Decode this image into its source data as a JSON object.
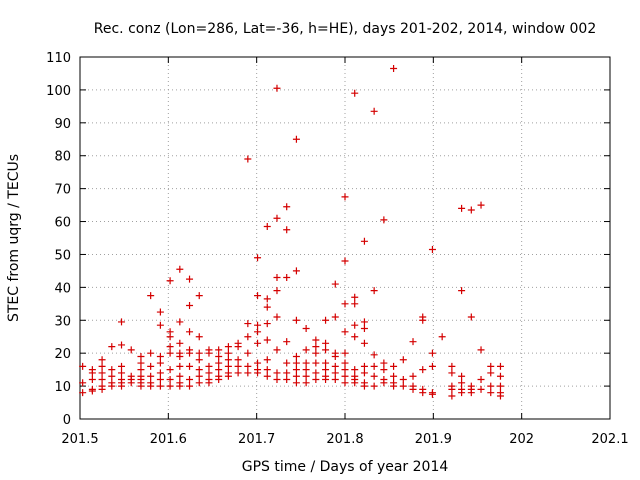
{
  "chart_data": {
    "type": "scatter",
    "title": "Rec. conz (Lon=286, Lat=-36, h=HE), days 201-202, 2014, window 002",
    "xlabel": "GPS time / Days of year 2014",
    "ylabel": "STEC from uqrg / TECUs",
    "xlim": [
      201.5,
      202.1
    ],
    "ylim": [
      0,
      110
    ],
    "x_ticks": [
      201.5,
      201.6,
      201.7,
      201.8,
      201.9,
      202,
      202.1
    ],
    "x_tick_labels": [
      "201.5",
      "201.6",
      "201.7",
      "201.8",
      "201.9",
      "202",
      "202.1"
    ],
    "y_ticks": [
      0,
      10,
      20,
      30,
      40,
      50,
      60,
      70,
      80,
      90,
      100,
      110
    ],
    "y_tick_labels": [
      "0",
      "10",
      "20",
      "30",
      "40",
      "50",
      "60",
      "70",
      "80",
      "90",
      "100",
      "110"
    ],
    "grid": true,
    "marker": "+",
    "color": "#d40000",
    "series": [
      {
        "name": "STEC",
        "points": [
          [
            201.503,
            8
          ],
          [
            201.503,
            11
          ],
          [
            201.503,
            16
          ],
          [
            201.514,
            8.5
          ],
          [
            201.514,
            9
          ],
          [
            201.514,
            12
          ],
          [
            201.514,
            14
          ],
          [
            201.514,
            15
          ],
          [
            201.525,
            9
          ],
          [
            201.525,
            10
          ],
          [
            201.525,
            12
          ],
          [
            201.525,
            14
          ],
          [
            201.525,
            16
          ],
          [
            201.525,
            18
          ],
          [
            201.536,
            10
          ],
          [
            201.536,
            11
          ],
          [
            201.536,
            13
          ],
          [
            201.536,
            15
          ],
          [
            201.536,
            22
          ],
          [
            201.547,
            10
          ],
          [
            201.547,
            11
          ],
          [
            201.547,
            12
          ],
          [
            201.547,
            14
          ],
          [
            201.547,
            16
          ],
          [
            201.547,
            22.5
          ],
          [
            201.547,
            29.5
          ],
          [
            201.558,
            11
          ],
          [
            201.558,
            12
          ],
          [
            201.558,
            13
          ],
          [
            201.558,
            21
          ],
          [
            201.569,
            10
          ],
          [
            201.569,
            11
          ],
          [
            201.569,
            12
          ],
          [
            201.569,
            13
          ],
          [
            201.569,
            15
          ],
          [
            201.569,
            17
          ],
          [
            201.569,
            19
          ],
          [
            201.58,
            10
          ],
          [
            201.58,
            11
          ],
          [
            201.58,
            13
          ],
          [
            201.58,
            16
          ],
          [
            201.58,
            20
          ],
          [
            201.58,
            37.5
          ],
          [
            201.591,
            10
          ],
          [
            201.591,
            12
          ],
          [
            201.591,
            14
          ],
          [
            201.591,
            17
          ],
          [
            201.591,
            19
          ],
          [
            201.591,
            28.5
          ],
          [
            201.591,
            32.5
          ],
          [
            201.602,
            10
          ],
          [
            201.602,
            12
          ],
          [
            201.602,
            15
          ],
          [
            201.602,
            20
          ],
          [
            201.602,
            22
          ],
          [
            201.602,
            25
          ],
          [
            201.602,
            26.5
          ],
          [
            201.602,
            42
          ],
          [
            201.613,
            10
          ],
          [
            201.613,
            11
          ],
          [
            201.613,
            13
          ],
          [
            201.613,
            16
          ],
          [
            201.613,
            19
          ],
          [
            201.613,
            20
          ],
          [
            201.613,
            23
          ],
          [
            201.613,
            29.5
          ],
          [
            201.613,
            45.5
          ],
          [
            201.624,
            10
          ],
          [
            201.624,
            12
          ],
          [
            201.624,
            16
          ],
          [
            201.624,
            20
          ],
          [
            201.624,
            21
          ],
          [
            201.624,
            26.5
          ],
          [
            201.624,
            34.5
          ],
          [
            201.624,
            42.5
          ],
          [
            201.635,
            11
          ],
          [
            201.635,
            13
          ],
          [
            201.635,
            15
          ],
          [
            201.635,
            18
          ],
          [
            201.635,
            20
          ],
          [
            201.635,
            25
          ],
          [
            201.635,
            37.5
          ],
          [
            201.646,
            11
          ],
          [
            201.646,
            12
          ],
          [
            201.646,
            14
          ],
          [
            201.646,
            16
          ],
          [
            201.646,
            20
          ],
          [
            201.646,
            21
          ],
          [
            201.657,
            12
          ],
          [
            201.657,
            13
          ],
          [
            201.657,
            15
          ],
          [
            201.657,
            17
          ],
          [
            201.657,
            19
          ],
          [
            201.657,
            21
          ],
          [
            201.668,
            13
          ],
          [
            201.668,
            14
          ],
          [
            201.668,
            16
          ],
          [
            201.668,
            18
          ],
          [
            201.668,
            20
          ],
          [
            201.668,
            22
          ],
          [
            201.679,
            14
          ],
          [
            201.679,
            16
          ],
          [
            201.679,
            18
          ],
          [
            201.679,
            22
          ],
          [
            201.679,
            23
          ],
          [
            201.69,
            14
          ],
          [
            201.69,
            16
          ],
          [
            201.69,
            20
          ],
          [
            201.69,
            25
          ],
          [
            201.69,
            29
          ],
          [
            201.69,
            79
          ],
          [
            201.701,
            14
          ],
          [
            201.701,
            15
          ],
          [
            201.701,
            17
          ],
          [
            201.701,
            23
          ],
          [
            201.701,
            26.5
          ],
          [
            201.701,
            28.5
          ],
          [
            201.701,
            37.5
          ],
          [
            201.701,
            49
          ],
          [
            201.712,
            13
          ],
          [
            201.712,
            15
          ],
          [
            201.712,
            18
          ],
          [
            201.712,
            24
          ],
          [
            201.712,
            29
          ],
          [
            201.712,
            34
          ],
          [
            201.712,
            36.5
          ],
          [
            201.712,
            58.5
          ],
          [
            201.723,
            12
          ],
          [
            201.723,
            14
          ],
          [
            201.723,
            21
          ],
          [
            201.723,
            31
          ],
          [
            201.723,
            39
          ],
          [
            201.723,
            43
          ],
          [
            201.723,
            61
          ],
          [
            201.723,
            100.5
          ],
          [
            201.734,
            12
          ],
          [
            201.734,
            14
          ],
          [
            201.734,
            17
          ],
          [
            201.734,
            23.5
          ],
          [
            201.734,
            43
          ],
          [
            201.734,
            57.5
          ],
          [
            201.734,
            64.5
          ],
          [
            201.745,
            11
          ],
          [
            201.745,
            13
          ],
          [
            201.745,
            15
          ],
          [
            201.745,
            17
          ],
          [
            201.745,
            19
          ],
          [
            201.745,
            30
          ],
          [
            201.745,
            45
          ],
          [
            201.745,
            85
          ],
          [
            201.756,
            11
          ],
          [
            201.756,
            13
          ],
          [
            201.756,
            15
          ],
          [
            201.756,
            17
          ],
          [
            201.756,
            21
          ],
          [
            201.756,
            27.5
          ],
          [
            201.767,
            12
          ],
          [
            201.767,
            14
          ],
          [
            201.767,
            17
          ],
          [
            201.767,
            20
          ],
          [
            201.767,
            22
          ],
          [
            201.767,
            24
          ],
          [
            201.778,
            12
          ],
          [
            201.778,
            13
          ],
          [
            201.778,
            15
          ],
          [
            201.778,
            17
          ],
          [
            201.778,
            21
          ],
          [
            201.778,
            23
          ],
          [
            201.778,
            30
          ],
          [
            201.789,
            12
          ],
          [
            201.789,
            14
          ],
          [
            201.789,
            16
          ],
          [
            201.789,
            19
          ],
          [
            201.789,
            20
          ],
          [
            201.789,
            31
          ],
          [
            201.789,
            41
          ],
          [
            201.8,
            11
          ],
          [
            201.8,
            13
          ],
          [
            201.8,
            15
          ],
          [
            201.8,
            17
          ],
          [
            201.8,
            20
          ],
          [
            201.8,
            26.5
          ],
          [
            201.8,
            35
          ],
          [
            201.8,
            48
          ],
          [
            201.8,
            67.5
          ],
          [
            201.811,
            11
          ],
          [
            201.811,
            12
          ],
          [
            201.811,
            13
          ],
          [
            201.811,
            15
          ],
          [
            201.811,
            25
          ],
          [
            201.811,
            28.5
          ],
          [
            201.811,
            35
          ],
          [
            201.811,
            37
          ],
          [
            201.811,
            99
          ],
          [
            201.822,
            10
          ],
          [
            201.822,
            11
          ],
          [
            201.822,
            14
          ],
          [
            201.822,
            16
          ],
          [
            201.822,
            23
          ],
          [
            201.822,
            27.5
          ],
          [
            201.822,
            29.5
          ],
          [
            201.822,
            54
          ],
          [
            201.833,
            10
          ],
          [
            201.833,
            13
          ],
          [
            201.833,
            16
          ],
          [
            201.833,
            19.5
          ],
          [
            201.833,
            39
          ],
          [
            201.833,
            93.5
          ],
          [
            201.844,
            11
          ],
          [
            201.844,
            12
          ],
          [
            201.844,
            15
          ],
          [
            201.844,
            17
          ],
          [
            201.844,
            60.5
          ],
          [
            201.855,
            10
          ],
          [
            201.855,
            11
          ],
          [
            201.855,
            13
          ],
          [
            201.855,
            16
          ],
          [
            201.855,
            106.5
          ],
          [
            201.866,
            10
          ],
          [
            201.866,
            12
          ],
          [
            201.866,
            18
          ],
          [
            201.877,
            9
          ],
          [
            201.877,
            10
          ],
          [
            201.877,
            13
          ],
          [
            201.877,
            23.5
          ],
          [
            201.888,
            8
          ],
          [
            201.888,
            9
          ],
          [
            201.888,
            15
          ],
          [
            201.888,
            30
          ],
          [
            201.888,
            31
          ],
          [
            201.899,
            7.5
          ],
          [
            201.899,
            8
          ],
          [
            201.899,
            16
          ],
          [
            201.899,
            20
          ],
          [
            201.899,
            51.5
          ],
          [
            201.91,
            25
          ],
          [
            201.921,
            7
          ],
          [
            201.921,
            9
          ],
          [
            201.921,
            10
          ],
          [
            201.921,
            14
          ],
          [
            201.921,
            16
          ],
          [
            201.932,
            8
          ],
          [
            201.932,
            9
          ],
          [
            201.932,
            11
          ],
          [
            201.932,
            13
          ],
          [
            201.932,
            39
          ],
          [
            201.932,
            64
          ],
          [
            201.943,
            8
          ],
          [
            201.943,
            9
          ],
          [
            201.943,
            10
          ],
          [
            201.943,
            31
          ],
          [
            201.943,
            63.5
          ],
          [
            201.954,
            9
          ],
          [
            201.954,
            12
          ],
          [
            201.954,
            21
          ],
          [
            201.954,
            65
          ],
          [
            201.965,
            8
          ],
          [
            201.965,
            10
          ],
          [
            201.965,
            14
          ],
          [
            201.965,
            16
          ],
          [
            201.976,
            7
          ],
          [
            201.976,
            8
          ],
          [
            201.976,
            10
          ],
          [
            201.976,
            13
          ],
          [
            201.976,
            16
          ]
        ]
      }
    ]
  }
}
